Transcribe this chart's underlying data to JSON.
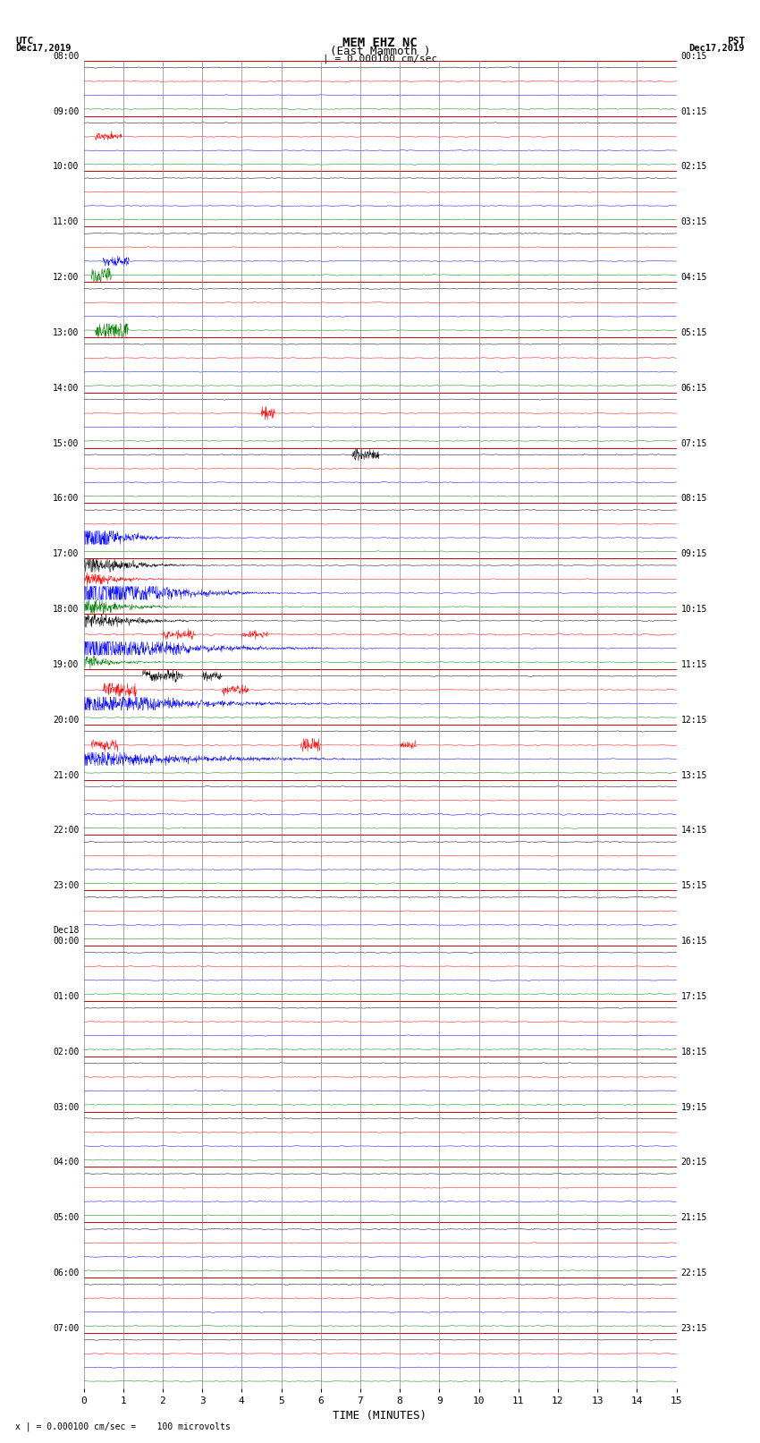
{
  "title_line1": "MEM EHZ NC",
  "title_line2": "(East Mammoth )",
  "title_scale": "| = 0.000100 cm/sec",
  "label_utc": "UTC",
  "label_date_left": "Dec17,2019",
  "label_pst": "PST",
  "label_date_right": "Dec17,2019",
  "xlabel": "TIME (MINUTES)",
  "footer": "x | = 0.000100 cm/sec =    100 microvolts",
  "utc_times": [
    "08:00",
    "09:00",
    "10:00",
    "11:00",
    "12:00",
    "13:00",
    "14:00",
    "15:00",
    "16:00",
    "17:00",
    "18:00",
    "19:00",
    "20:00",
    "21:00",
    "22:00",
    "23:00",
    "Dec18\n00:00",
    "01:00",
    "02:00",
    "03:00",
    "04:00",
    "05:00",
    "06:00",
    "07:00"
  ],
  "pst_times": [
    "00:15",
    "01:15",
    "02:15",
    "03:15",
    "04:15",
    "05:15",
    "06:15",
    "07:15",
    "08:15",
    "09:15",
    "10:15",
    "11:15",
    "12:15",
    "13:15",
    "14:15",
    "15:15",
    "16:15",
    "17:15",
    "18:15",
    "19:15",
    "20:15",
    "21:15",
    "22:15",
    "23:15"
  ],
  "n_rows": 24,
  "traces_per_row": 4,
  "minutes_per_row": 15,
  "colors": [
    "black",
    "red",
    "blue",
    "green"
  ],
  "background_color": "white",
  "h_grid_color": "#cc0000",
  "v_grid_color": "#808080",
  "figsize": [
    8.5,
    16.13
  ],
  "dpi": 100,
  "trace_scale": 0.38,
  "samples": 1800
}
